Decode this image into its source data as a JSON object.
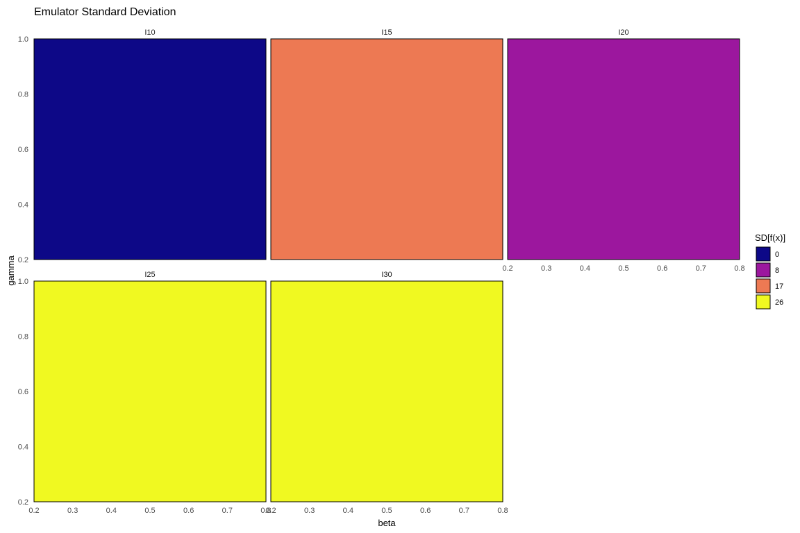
{
  "chart_data": {
    "type": "heatmap",
    "title": "Emulator Standard Deviation",
    "xlabel": "beta",
    "ylabel": "gamma",
    "xlim": [
      0.2,
      0.8
    ],
    "ylim": [
      0.2,
      1.0
    ],
    "x_ticks": [
      "0.2",
      "0.3",
      "0.4",
      "0.5",
      "0.6",
      "0.7",
      "0.8"
    ],
    "y_ticks": [
      "0.2",
      "0.4",
      "0.6",
      "0.8",
      "1.0"
    ],
    "grid": false,
    "legend": {
      "title": "SD[f(x)]",
      "position": "right",
      "entries": [
        {
          "label": "0",
          "color": "#0d0887"
        },
        {
          "label": "8",
          "color": "#9c179e"
        },
        {
          "label": "17",
          "color": "#ed7953"
        },
        {
          "label": "26",
          "color": "#f0f921"
        }
      ]
    },
    "panels": [
      {
        "name": "I10",
        "value": 0,
        "color": "#0d0887"
      },
      {
        "name": "I15",
        "value": 17,
        "color": "#ed7953"
      },
      {
        "name": "I20",
        "value": 8,
        "color": "#9c179e"
      },
      {
        "name": "I25",
        "value": 26,
        "color": "#f0f921"
      },
      {
        "name": "I30",
        "value": 26,
        "color": "#f0f921"
      }
    ]
  }
}
